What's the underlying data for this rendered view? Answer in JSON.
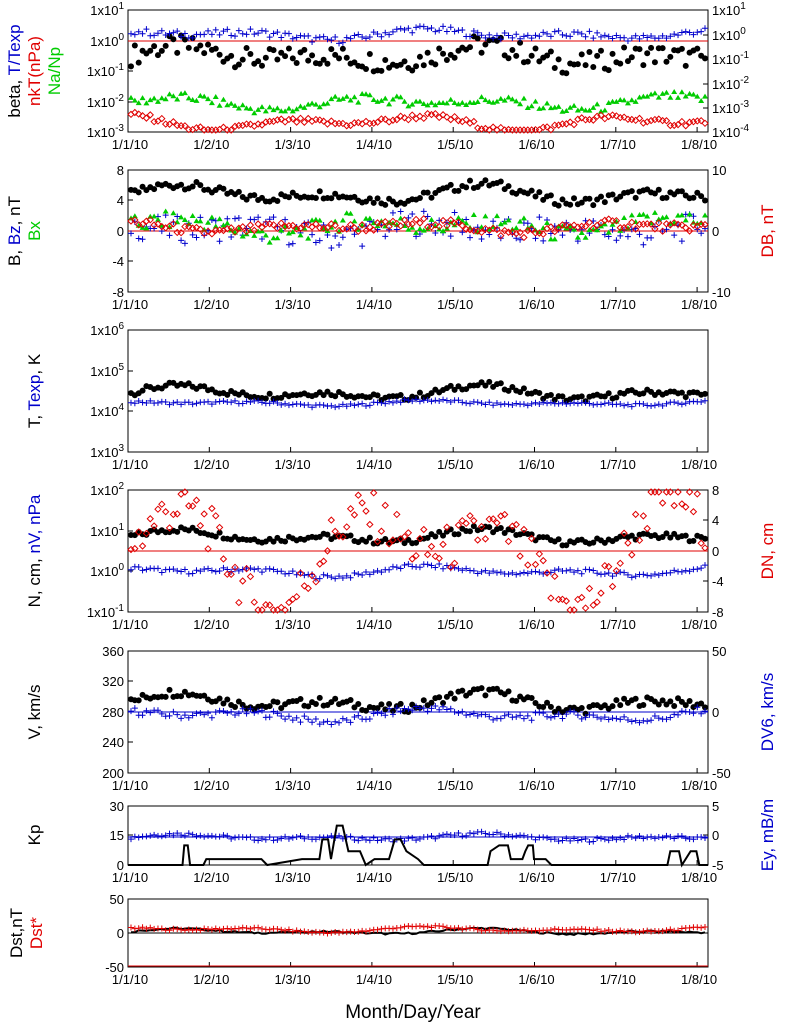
{
  "figure": {
    "x_title": "Month/Day/Year",
    "x_ticks": [
      "1/1/10",
      "1/2/10",
      "1/3/10",
      "1/4/10",
      "1/5/10",
      "1/6/10",
      "1/7/10",
      "1/8/10"
    ]
  },
  "chart_data": [
    {
      "type": "scatter",
      "panel": "beta",
      "ylabel_left": [
        {
          "text": "beta, ",
          "color": "#000000"
        },
        {
          "text": "T/Texp",
          "color": "#0000cc"
        }
      ],
      "ylabel_left2": [
        {
          "text": "nkT(nPa)",
          "color": "#e00000"
        }
      ],
      "ylabel_left3": [
        {
          "text": "Na/Np",
          "color": "#00cc00"
        }
      ],
      "yscale": "log",
      "left_ticks": [
        "1x10",
        "1x10",
        "1x10",
        "1x10",
        "1x10"
      ],
      "left_exponents": [
        "-3",
        "-2",
        "-1",
        "0",
        "1"
      ],
      "right_ticks": [
        "1x10",
        "1x10",
        "1x10",
        "1x10",
        "1x10",
        "1x10"
      ],
      "right_exponents": [
        "-4",
        "-3",
        "-2",
        "-1",
        "0",
        "1"
      ],
      "ref_line_value": 1.0,
      "ref_line_color": "#e00000",
      "series": [
        {
          "key": "beta",
          "color": "#000000",
          "marker": "dot",
          "level": -0.5,
          "var": 0.35,
          "wave": 0.35
        },
        {
          "key": "T_Texp",
          "color": "#0000cc",
          "marker": "plus",
          "level": 0.2,
          "var": 0.12,
          "wave": 0.2
        },
        {
          "key": "Na_Np",
          "color": "#00cc00",
          "marker": "triangle",
          "level": -2.05,
          "var": 0.15,
          "wave": 0.25
        },
        {
          "key": "nkT",
          "color": "#e00000",
          "marker": "diamond",
          "level": -2.7,
          "var": 0.1,
          "wave": 0.3
        }
      ]
    },
    {
      "type": "scatter",
      "panel": "B",
      "ylabel_left": [
        {
          "text": "B, ",
          "color": "#000000"
        },
        {
          "text": "Bz",
          "color": "#0000cc"
        },
        {
          "text": ", nT",
          "color": "#000000"
        }
      ],
      "ylabel_left2": [
        {
          "text": "Bx",
          "color": "#00cc00"
        }
      ],
      "ylabel_right": [
        {
          "text": "DB, nT",
          "color": "#e00000"
        }
      ],
      "yscale": "linear",
      "ylim": [
        -8,
        8
      ],
      "left_ticks": [
        "-8",
        "-4",
        "0",
        "4",
        "8"
      ],
      "right_ticks": [
        "-10",
        "0",
        "10"
      ],
      "ref_line_value": 0,
      "ref_line_color": "#e00000",
      "series": [
        {
          "key": "B",
          "color": "#000000",
          "marker": "dot",
          "level": 4.8,
          "var": 0.6,
          "wave": 1.4
        },
        {
          "key": "Bz",
          "color": "#0000cc",
          "marker": "plus",
          "level": 0.2,
          "var": 1.8,
          "wave": 1.0
        },
        {
          "key": "Bx",
          "color": "#00cc00",
          "marker": "triangle",
          "level": 0.6,
          "var": 1.2,
          "wave": 1.2
        },
        {
          "key": "DB",
          "color": "#e00000",
          "marker": "diamond",
          "level": 0.5,
          "var": 0.6,
          "wave": 0.8
        }
      ]
    },
    {
      "type": "scatter",
      "panel": "T",
      "ylabel_left": [
        {
          "text": "T, ",
          "color": "#000000"
        },
        {
          "text": "Texp",
          "color": "#0000cc"
        },
        {
          "text": ", K",
          "color": "#000000"
        }
      ],
      "yscale": "log",
      "left_ticks": [
        "1x10",
        "1x10",
        "1x10",
        "1x10"
      ],
      "left_exponents": [
        "3",
        "4",
        "5",
        "6"
      ],
      "series": [
        {
          "key": "T",
          "color": "#000000",
          "marker": "dot",
          "level": 4.45,
          "var": 0.08,
          "wave": 0.2
        },
        {
          "key": "Texp",
          "color": "#0000cc",
          "marker": "plus",
          "level": 4.2,
          "var": 0.04,
          "wave": 0.08
        }
      ]
    },
    {
      "type": "scatter",
      "panel": "N",
      "ylabel_left": [
        {
          "text": "N, cm",
          "color": "#000000"
        },
        {
          "text": ", ",
          "color": "#000000"
        },
        {
          "text": "nV",
          "color": "#0000cc"
        },
        {
          "text": ", nPa",
          "color": "#0000cc"
        }
      ],
      "ylabel_right": [
        {
          "text": "DN, cm",
          "color": "#e00000"
        }
      ],
      "yscale": "log",
      "left_ticks": [
        "1x10",
        "1x10",
        "1x10",
        "1x10"
      ],
      "left_exponents": [
        "-1",
        "0",
        "1",
        "2"
      ],
      "right_ticks": [
        "-8",
        "-4",
        "0",
        "4",
        "8"
      ],
      "ref_line_value": 0,
      "ref_line_color": "#e00000",
      "series": [
        {
          "key": "N",
          "color": "#000000",
          "marker": "dot",
          "level": 0.85,
          "var": 0.08,
          "wave": 0.2
        },
        {
          "key": "nV2",
          "color": "#0000cc",
          "marker": "plus",
          "level": 0.0,
          "var": 0.06,
          "wave": 0.15
        },
        {
          "key": "DN",
          "color": "#e00000",
          "marker": "diamond",
          "level": 0.5,
          "var": 0.6,
          "wave": 1.5
        }
      ]
    },
    {
      "type": "scatter",
      "panel": "V",
      "ylabel_left": [
        {
          "text": "V, km/s",
          "color": "#000000"
        }
      ],
      "ylabel_right": [
        {
          "text": "DV6, km/s",
          "color": "#0000cc"
        }
      ],
      "yscale": "linear",
      "ylim": [
        200,
        360
      ],
      "left_ticks": [
        "200",
        "240",
        "280",
        "320",
        "360"
      ],
      "right_ticks": [
        "-50",
        "0",
        "50"
      ],
      "ref_line_value": 280,
      "ref_line_color": "#0000cc",
      "series": [
        {
          "key": "V",
          "color": "#000000",
          "marker": "dot",
          "level": 293,
          "var": 6,
          "wave": 14
        },
        {
          "key": "DV6",
          "color": "#0000cc",
          "marker": "plus",
          "level": 276,
          "var": 5,
          "wave": 10
        }
      ]
    },
    {
      "type": "line",
      "panel": "Kp",
      "ylabel_left": [
        {
          "text": "Kp",
          "color": "#000000"
        }
      ],
      "ylabel_right": [
        {
          "text": "Ey, mB/m",
          "color": "#0000cc"
        }
      ],
      "yscale": "linear",
      "ylim": [
        0,
        30
      ],
      "left_ticks": [
        "0",
        "15",
        "30"
      ],
      "right_ticks": [
        "-5",
        "0",
        "5"
      ],
      "ref_line_value": 0,
      "ref_line_color": "#0000cc",
      "series": [
        {
          "key": "Ey",
          "color": "#0000cc",
          "marker": "plus",
          "level": 14,
          "var": 1,
          "wave": 2
        },
        {
          "key": "Kp",
          "color": "#000000",
          "marker": "line",
          "steps": [
            [
              0,
              0
            ],
            [
              0.094,
              0
            ],
            [
              0.097,
              10
            ],
            [
              0.103,
              10
            ],
            [
              0.107,
              0
            ],
            [
              0.13,
              0
            ],
            [
              0.135,
              3
            ],
            [
              0.2,
              3
            ],
            [
              0.23,
              3
            ],
            [
              0.24,
              0
            ],
            [
              0.3,
              3
            ],
            [
              0.33,
              3
            ],
            [
              0.335,
              13
            ],
            [
              0.345,
              13
            ],
            [
              0.35,
              3
            ],
            [
              0.36,
              20
            ],
            [
              0.37,
              20
            ],
            [
              0.38,
              7
            ],
            [
              0.4,
              7
            ],
            [
              0.41,
              0
            ],
            [
              0.425,
              3
            ],
            [
              0.45,
              3
            ],
            [
              0.46,
              13
            ],
            [
              0.47,
              13
            ],
            [
              0.48,
              7
            ],
            [
              0.5,
              3
            ],
            [
              0.51,
              0
            ],
            [
              0.62,
              0
            ],
            [
              0.625,
              7
            ],
            [
              0.64,
              10
            ],
            [
              0.655,
              10
            ],
            [
              0.66,
              3
            ],
            [
              0.68,
              3
            ],
            [
              0.685,
              7
            ],
            [
              0.69,
              10
            ],
            [
              0.698,
              10
            ],
            [
              0.7,
              3
            ],
            [
              0.72,
              3
            ],
            [
              0.73,
              0
            ],
            [
              0.93,
              0
            ],
            [
              0.935,
              7
            ],
            [
              0.95,
              7
            ],
            [
              0.955,
              0
            ],
            [
              0.97,
              7
            ],
            [
              0.98,
              7
            ],
            [
              0.985,
              0
            ],
            [
              1,
              0
            ]
          ]
        }
      ]
    },
    {
      "type": "line",
      "panel": "Dst",
      "ylabel_left": [
        {
          "text": "Dst,nT",
          "color": "#000000"
        }
      ],
      "ylabel_left2": [
        {
          "text": "Dst*",
          "color": "#e00000"
        }
      ],
      "yscale": "linear",
      "ylim": [
        -50,
        50
      ],
      "left_ticks": [
        "-50",
        "0",
        "50"
      ],
      "ref_line_value": 0,
      "ref_line_color": "#000000",
      "bottom_line_value": -50,
      "bottom_line_color": "#e00000",
      "series": [
        {
          "key": "Dst",
          "color": "#000000",
          "marker": "line",
          "level": 2,
          "var": 1.5,
          "wave": 5
        },
        {
          "key": "Dst_star",
          "color": "#e00000",
          "marker": "plus",
          "level": 5,
          "var": 1.5,
          "wave": 5
        }
      ]
    }
  ]
}
